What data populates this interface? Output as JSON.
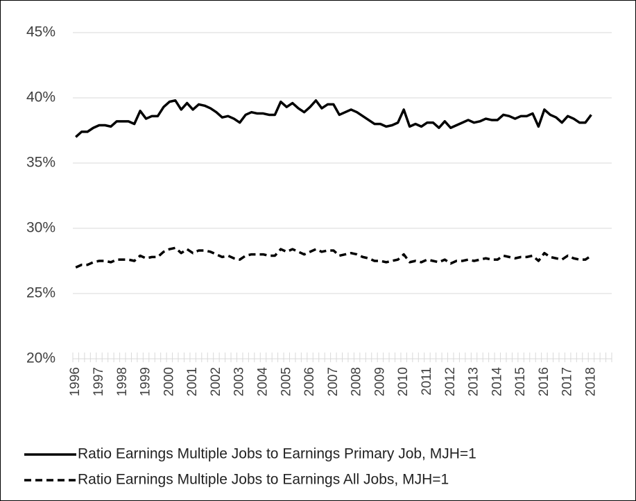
{
  "chart_data": {
    "type": "line",
    "categories": [
      "1996",
      null,
      null,
      null,
      "1997",
      null,
      null,
      null,
      "1998",
      null,
      null,
      null,
      "1999",
      null,
      null,
      null,
      "2000",
      null,
      null,
      null,
      "2001",
      null,
      null,
      null,
      "2002",
      null,
      null,
      null,
      "2003",
      null,
      null,
      null,
      "2004",
      null,
      null,
      null,
      "2005",
      null,
      null,
      null,
      "2006",
      null,
      null,
      null,
      "2007",
      null,
      null,
      null,
      "2008",
      null,
      null,
      null,
      "2009",
      null,
      null,
      null,
      "2010",
      null,
      null,
      null,
      "2011",
      null,
      null,
      null,
      "2012",
      null,
      null,
      null,
      "2013",
      null,
      null,
      null,
      "2014",
      null,
      null,
      null,
      "2015",
      null,
      null,
      null,
      "2016",
      null,
      null,
      null,
      "2017",
      null,
      null,
      null,
      "2018",
      null,
      null,
      null
    ],
    "series": [
      {
        "name": "Ratio Earnings Multiple Jobs to Earnings Primary Job, MJH=1",
        "color": "#000000",
        "dash": "solid",
        "values": [
          37.0,
          37.4,
          37.4,
          37.7,
          37.9,
          37.9,
          37.8,
          38.2,
          38.2,
          38.2,
          38.0,
          39.0,
          38.4,
          38.6,
          38.6,
          39.3,
          39.7,
          39.8,
          39.1,
          39.6,
          39.1,
          39.5,
          39.4,
          39.2,
          38.9,
          38.5,
          38.6,
          38.4,
          38.1,
          38.7,
          38.9,
          38.8,
          38.8,
          38.7,
          38.7,
          39.7,
          39.3,
          39.6,
          39.2,
          38.9,
          39.3,
          39.8,
          39.2,
          39.5,
          39.5,
          38.7,
          38.9,
          39.1,
          38.9,
          38.6,
          38.3,
          38.0,
          38.0,
          37.8,
          37.9,
          38.1,
          39.1,
          37.8,
          38.0,
          37.8,
          38.1,
          38.1,
          37.7,
          38.2,
          37.7,
          37.9,
          38.1,
          38.3,
          38.1,
          38.2,
          38.4,
          38.3,
          38.3,
          38.7,
          38.6,
          38.4,
          38.6,
          38.6,
          38.8,
          37.8,
          39.1,
          38.7,
          38.5,
          38.1,
          38.6,
          38.4,
          38.1,
          38.1,
          38.7,
          null,
          null,
          null
        ]
      },
      {
        "name": "Ratio Earnings Multiple Jobs to Earnings All Jobs, MJH=1",
        "color": "#000000",
        "dash": "dashed",
        "values": [
          27.0,
          27.2,
          27.2,
          27.4,
          27.5,
          27.5,
          27.4,
          27.6,
          27.6,
          27.6,
          27.5,
          27.9,
          27.7,
          27.8,
          27.8,
          28.2,
          28.4,
          28.5,
          28.1,
          28.4,
          28.1,
          28.3,
          28.3,
          28.2,
          28.0,
          27.8,
          27.9,
          27.7,
          27.6,
          27.9,
          28.0,
          28.0,
          28.0,
          27.9,
          27.9,
          28.4,
          28.2,
          28.4,
          28.2,
          28.0,
          28.2,
          28.4,
          28.2,
          28.3,
          28.3,
          27.9,
          28.0,
          28.1,
          28.0,
          27.8,
          27.7,
          27.5,
          27.5,
          27.4,
          27.5,
          27.6,
          28.0,
          27.4,
          27.5,
          27.4,
          27.6,
          27.5,
          27.4,
          27.6,
          27.3,
          27.5,
          27.5,
          27.6,
          27.5,
          27.6,
          27.7,
          27.6,
          27.6,
          27.9,
          27.8,
          27.7,
          27.8,
          27.8,
          27.9,
          27.5,
          28.1,
          27.8,
          27.7,
          27.6,
          27.9,
          27.7,
          27.6,
          27.6,
          27.9,
          null,
          null,
          null
        ]
      }
    ],
    "ylim": [
      20,
      45
    ],
    "yticks": [
      {
        "value": 20,
        "label": "20%"
      },
      {
        "value": 25,
        "label": "25%"
      },
      {
        "value": 30,
        "label": "30%"
      },
      {
        "value": 35,
        "label": "35%"
      },
      {
        "value": 40,
        "label": "40%"
      },
      {
        "value": 45,
        "label": "45%"
      }
    ],
    "grid": true,
    "legend": "bottom"
  }
}
